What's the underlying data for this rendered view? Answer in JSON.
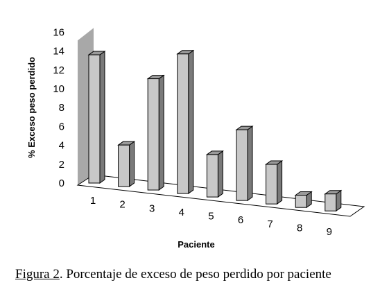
{
  "chart_data": {
    "type": "bar",
    "categories": [
      "1",
      "2",
      "3",
      "4",
      "5",
      "6",
      "7",
      "8",
      "9"
    ],
    "values": [
      13.6,
      4.4,
      11.8,
      14.8,
      4.5,
      7.5,
      4.2,
      1.3,
      1.8
    ],
    "xlabel": "Paciente",
    "ylabel": "% Exceso peso perdido",
    "ylim": [
      0,
      16
    ],
    "yticks": [
      0,
      2,
      4,
      6,
      8,
      10,
      12,
      14,
      16
    ],
    "bar_color": "#c8c8c8",
    "wall_color": "#a8a8a8"
  },
  "caption": {
    "figure": "Figura 2",
    "text": ". Porcentaje de exceso de peso perdido por paciente"
  }
}
